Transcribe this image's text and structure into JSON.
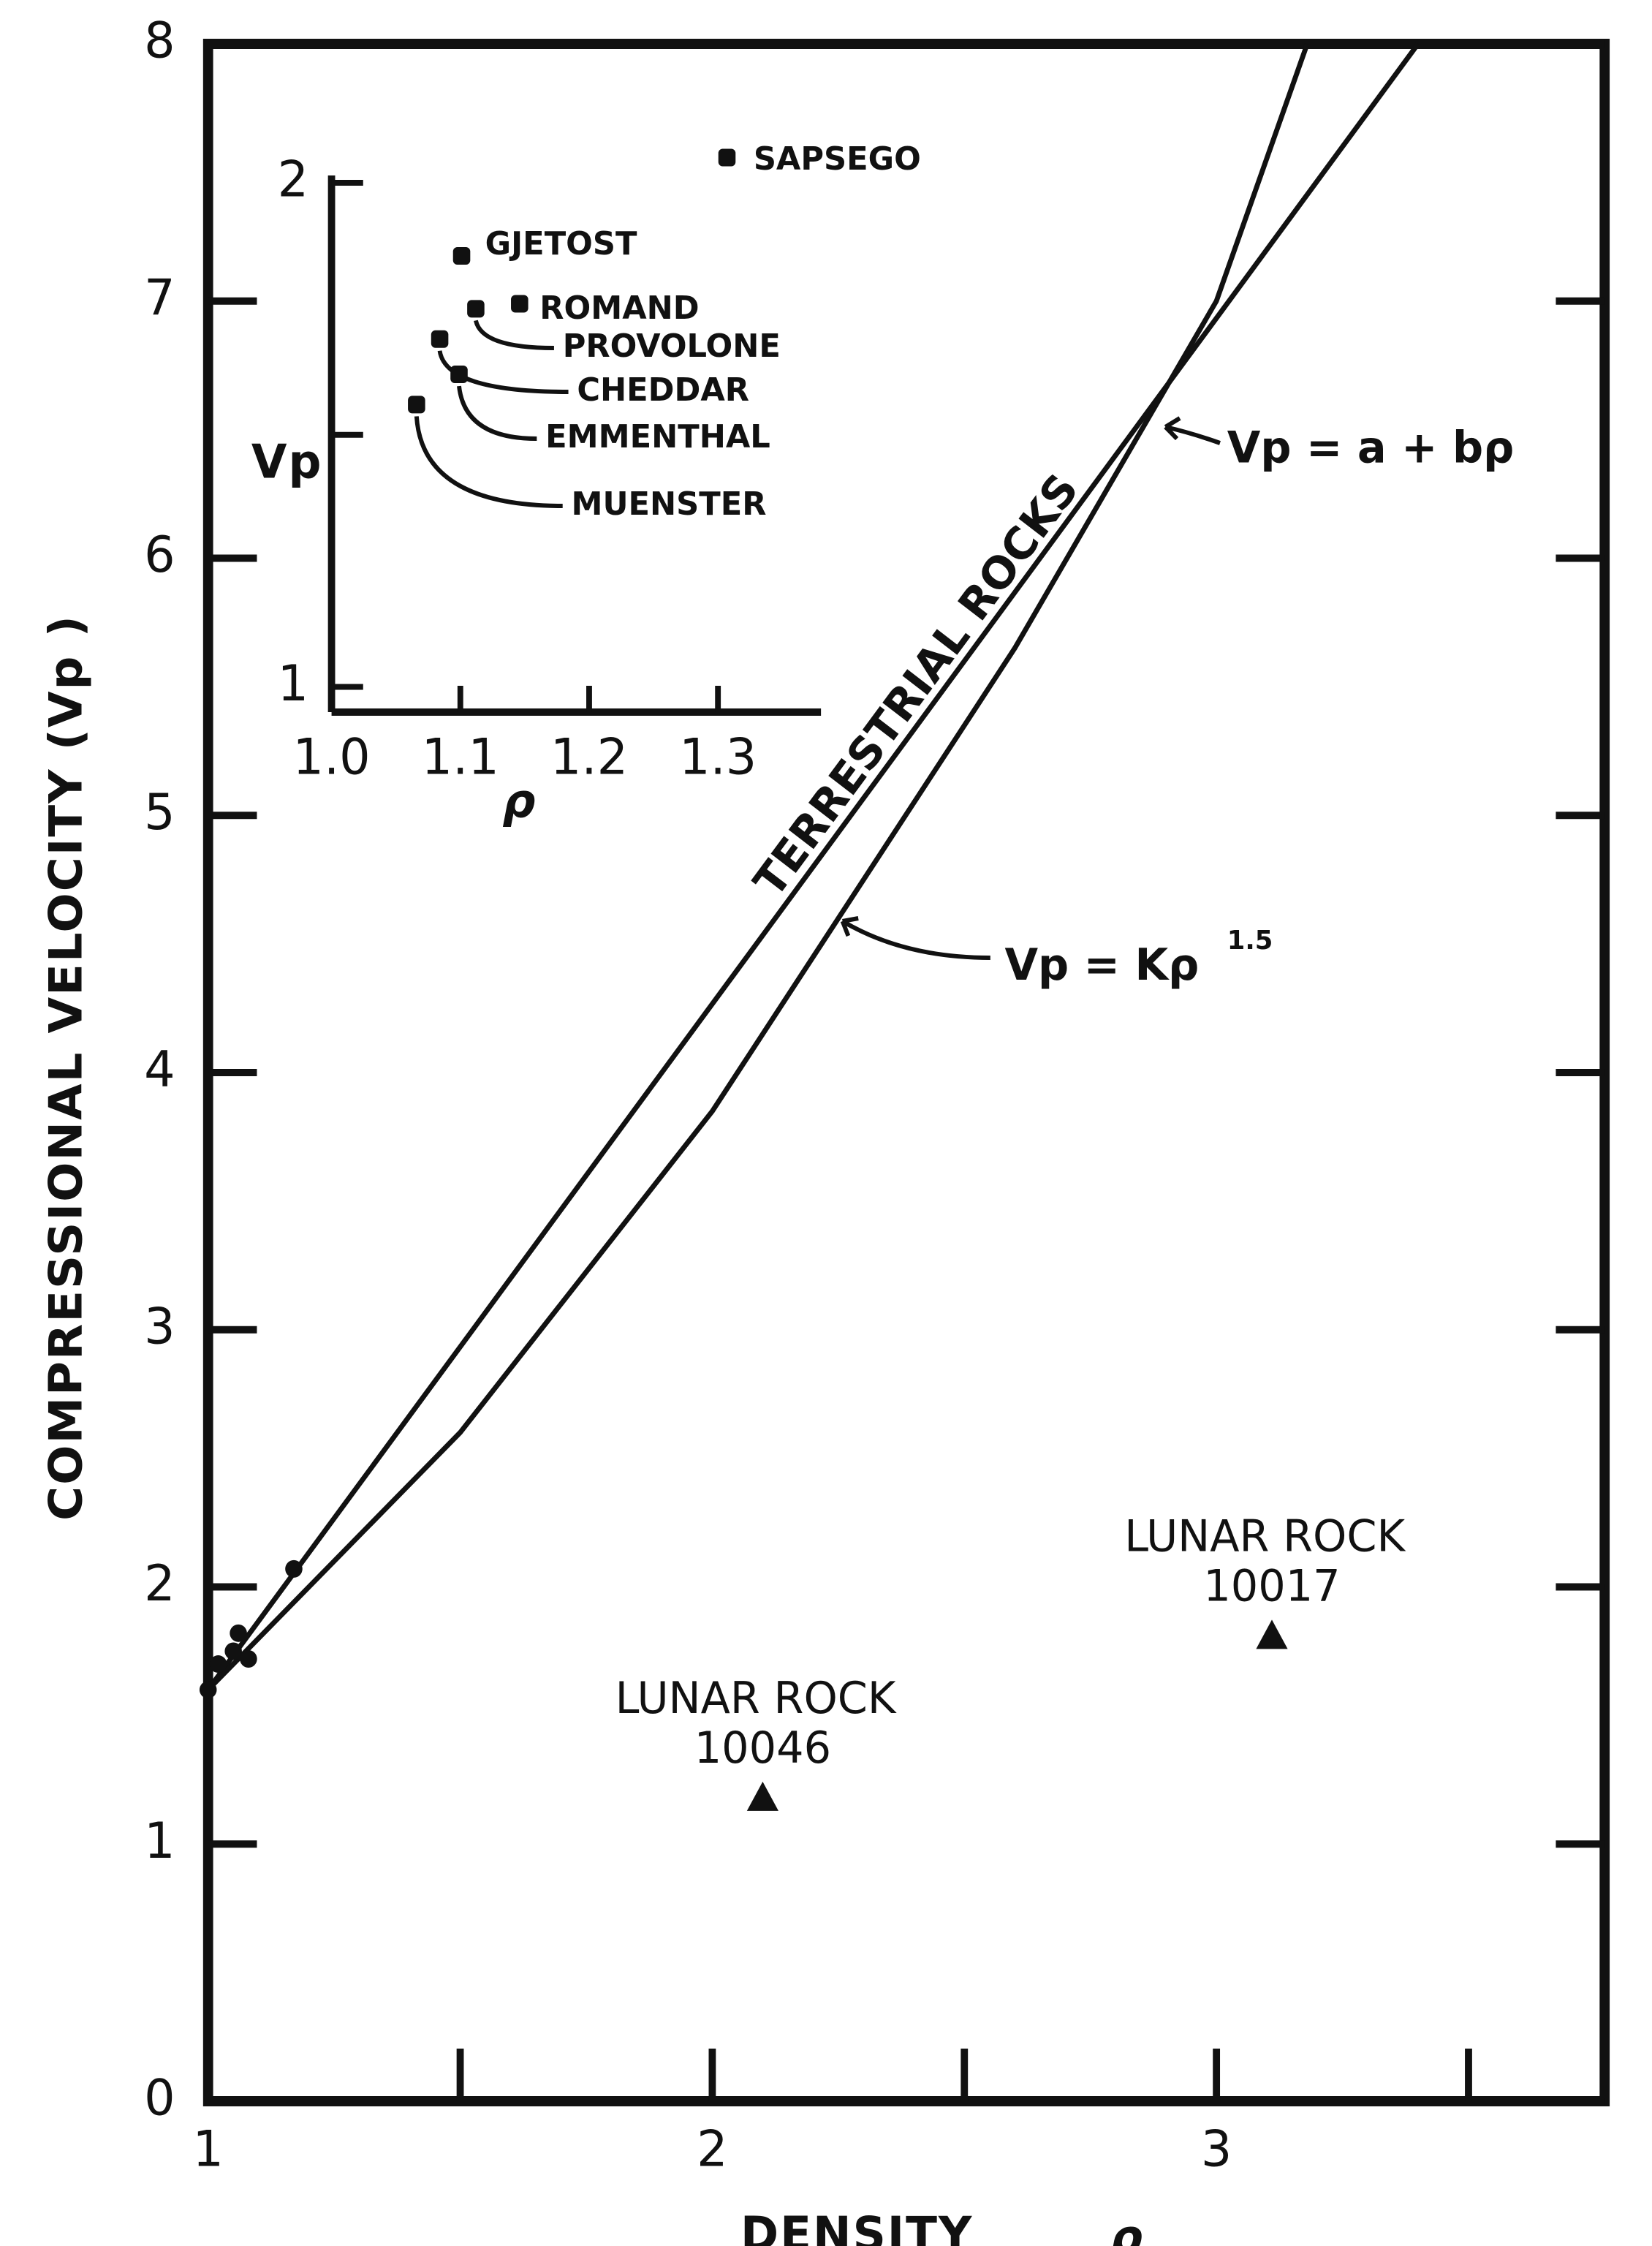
{
  "chart_data": [
    {
      "type": "scatter",
      "x_label": "DENSITY",
      "x_label_symbol": "ρ",
      "y_label": "COMPRESSIONAL VELOCITY (Vp )",
      "xlim": [
        1,
        3.77
      ],
      "ylim": [
        0,
        8
      ],
      "xticks": [
        1,
        2,
        3
      ],
      "xminorticks": [
        1.5,
        2.5,
        3.5
      ],
      "yticks": [
        0,
        1,
        2,
        3,
        4,
        5,
        6,
        7,
        8
      ],
      "curves": [
        {
          "label": "Vp = a + bρ",
          "x": [
            1,
            3.4
          ],
          "y": [
            1.6,
            8
          ]
        },
        {
          "label": "Vp = Kρ",
          "exponent": "1.5",
          "x": [
            1,
            1.5,
            2,
            2.5,
            2.6,
            3,
            3.18
          ],
          "y": [
            1.6,
            2.6,
            3.85,
            5.35,
            5.65,
            7.0,
            8
          ]
        }
      ],
      "band_label": "TERRESTRIAL ROCKS",
      "points": {
        "x": [
          1.0,
          1.02,
          1.05,
          1.06,
          1.08,
          1.17
        ],
        "y": [
          1.6,
          1.7,
          1.75,
          1.82,
          1.72,
          2.07
        ]
      },
      "lunar_rocks": [
        {
          "label": "LUNAR ROCK",
          "id": "10046",
          "x": 2.1,
          "y": 1.18
        },
        {
          "label": "LUNAR ROCK",
          "id": "10017",
          "x": 3.11,
          "y": 1.81
        }
      ]
    },
    {
      "type": "scatter",
      "x_label": "ρ",
      "y_label": "Vp",
      "xlim": [
        1.0,
        1.38
      ],
      "ylim": [
        0.95,
        2.0
      ],
      "xticks": [
        {
          "value": 1,
          "label": "1.0"
        },
        1.1,
        1.2,
        1.3
      ],
      "yticks": [
        1,
        2
      ],
      "yminorticks": [
        1.5
      ],
      "points": [
        {
          "name": "SAPSEGO",
          "x": 1.307,
          "y": 2.05
        },
        {
          "name": "GJETOST",
          "x": 1.101,
          "y": 1.855
        },
        {
          "name": "ROMAND",
          "x": 1.146,
          "y": 1.76
        },
        {
          "name": "PROVOLONE",
          "x": 1.112,
          "y": 1.75
        },
        {
          "name": "CHEDDAR",
          "x": 1.084,
          "y": 1.69
        },
        {
          "name": "EMMENTHAL",
          "x": 1.099,
          "y": 1.62
        },
        {
          "name": "MUENSTER",
          "x": 1.066,
          "y": 1.56
        }
      ]
    }
  ]
}
